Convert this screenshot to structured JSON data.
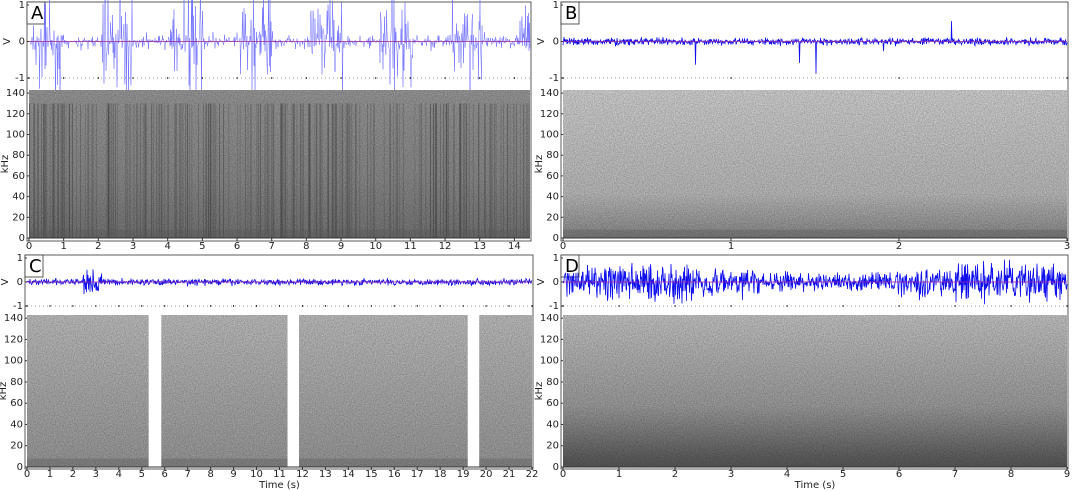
{
  "chart_data": [
    {
      "type": "spectrogram",
      "label": "A",
      "waveform": {
        "ylabel": "V",
        "ylim": [
          -1,
          1
        ],
        "yticks": [
          -1,
          0,
          1
        ]
      },
      "spectrogram": {
        "ylabel": "kHz",
        "ylim": [
          0,
          143
        ],
        "yticks": [
          0,
          20,
          40,
          60,
          80,
          100,
          120,
          140
        ]
      },
      "xlim": [
        0,
        14.45
      ],
      "xticks": [
        0,
        1,
        2,
        3,
        4,
        5,
        6,
        7,
        8,
        9,
        10,
        11,
        12,
        13,
        14
      ]
    },
    {
      "type": "spectrogram",
      "label": "B",
      "waveform": {
        "ylabel": "V",
        "ylim": [
          -1,
          1
        ],
        "yticks": [
          -1,
          0,
          1
        ]
      },
      "spectrogram": {
        "ylabel": "kHz",
        "ylim": [
          0,
          143
        ],
        "yticks": [
          0,
          20,
          40,
          60,
          80,
          100,
          120,
          140
        ]
      },
      "xlim": [
        0,
        3
      ],
      "xticks": [
        0,
        1,
        2,
        3
      ]
    },
    {
      "type": "spectrogram",
      "label": "C",
      "waveform": {
        "ylabel": "V",
        "ylim": [
          -1,
          1
        ],
        "yticks": [
          -1,
          0,
          1
        ]
      },
      "spectrogram": {
        "ylabel": "kHz",
        "ylim": [
          0,
          143
        ],
        "yticks": [
          0,
          20,
          40,
          60,
          80,
          100,
          120,
          140
        ]
      },
      "xlim": [
        0,
        22
      ],
      "xticks": [
        0,
        1,
        2,
        3,
        4,
        5,
        6,
        7,
        8,
        9,
        10,
        11,
        12,
        13,
        14,
        15,
        16,
        17,
        18,
        19,
        20,
        21,
        22
      ],
      "xlabel": "Time (s)"
    },
    {
      "type": "spectrogram",
      "label": "D",
      "waveform": {
        "ylabel": "V",
        "ylim": [
          -1,
          1
        ],
        "yticks": [
          -1,
          0,
          1
        ]
      },
      "spectrogram": {
        "ylabel": "kHz",
        "ylim": [
          0,
          143
        ],
        "yticks": [
          0,
          20,
          40,
          60,
          80,
          100,
          120,
          140
        ]
      },
      "xlim": [
        0,
        9
      ],
      "xticks": [
        0,
        1,
        2,
        3,
        4,
        5,
        6,
        7,
        8,
        9
      ],
      "xlabel": "Time (s)"
    }
  ]
}
